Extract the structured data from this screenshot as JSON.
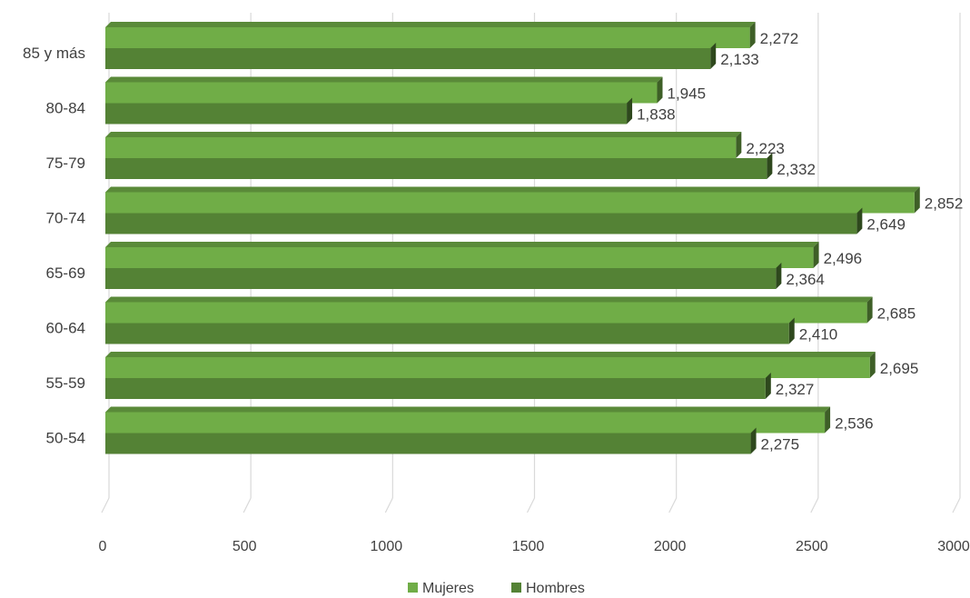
{
  "chart_data": {
    "type": "bar",
    "orientation": "horizontal",
    "style": "3d",
    "categories": [
      "85  y más",
      "80-84",
      "75-79",
      "70-74",
      "65-69",
      "60-64",
      "55-59",
      "50-54"
    ],
    "series": [
      {
        "name": "Mujeres",
        "color": "#70ad47",
        "values": [
          2272,
          1945,
          2223,
          2852,
          2496,
          2685,
          2695,
          2536
        ],
        "labels": [
          "2,272",
          "1,945",
          "2,223",
          "2,852",
          "2,496",
          "2,685",
          "2,695",
          "2,536"
        ]
      },
      {
        "name": "Hombres",
        "color": "#548235",
        "values": [
          2133,
          1838,
          2332,
          2649,
          2364,
          2410,
          2327,
          2275
        ],
        "labels": [
          "2,133",
          "1,838",
          "2,332",
          "2,649",
          "2,364",
          "2,410",
          "2,327",
          "2,275"
        ]
      }
    ],
    "xlim": [
      0,
      3000
    ],
    "ticks": [
      0,
      500,
      1000,
      1500,
      2000,
      2500,
      3000
    ],
    "tick_labels": [
      "0",
      "500",
      "1000",
      "1500",
      "2000",
      "2500",
      "3000"
    ],
    "grid": true,
    "legend": "bottom"
  }
}
